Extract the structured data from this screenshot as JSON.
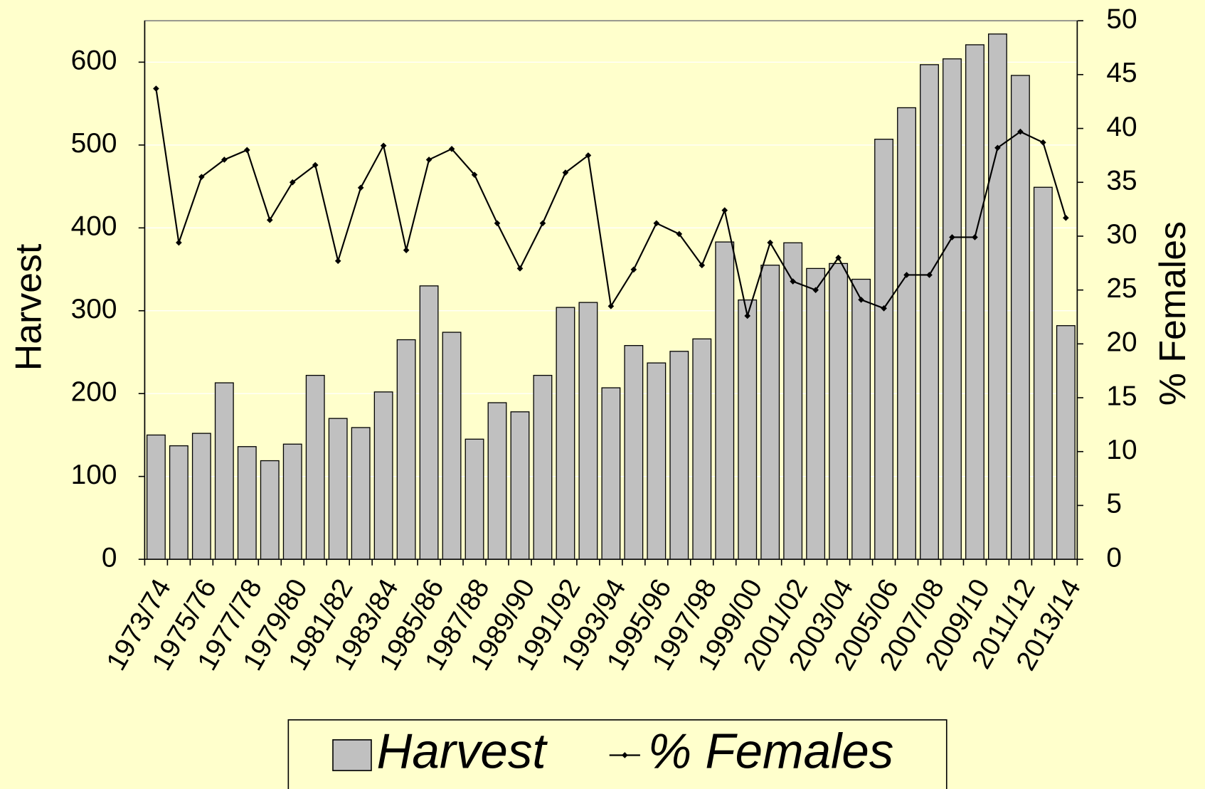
{
  "chart_data": {
    "type": "bar-line",
    "categories": [
      "1973/74",
      null,
      "1975/76",
      null,
      "1977/78",
      null,
      "1979/80",
      null,
      "1981/82",
      null,
      "1983/84",
      null,
      "1985/86",
      null,
      "1987/88",
      null,
      "1989/90",
      null,
      "1991/92",
      null,
      "1993/94",
      null,
      "1995/96",
      null,
      "1997/98",
      null,
      "1999/00",
      null,
      "2001/02",
      null,
      "2003/04",
      null,
      "2005/06",
      null,
      "2007/08",
      null,
      "2009/10",
      null,
      "2011/12",
      null,
      "2013/14"
    ],
    "series": [
      {
        "name": "Harvest",
        "type": "bar",
        "color": "#c0c0c0",
        "values": [
          150,
          137,
          152,
          213,
          136,
          119,
          139,
          222,
          170,
          159,
          202,
          265,
          330,
          274,
          145,
          189,
          178,
          222,
          304,
          310,
          207,
          258,
          237,
          251,
          266,
          383,
          313,
          355,
          382,
          351,
          357,
          338,
          507,
          545,
          597,
          604,
          621,
          634,
          584,
          449,
          282
        ]
      },
      {
        "name": "% Females",
        "type": "line",
        "axis": "y2",
        "color": "#000000",
        "values": [
          43.7,
          29.4,
          35.5,
          37.1,
          38.0,
          31.5,
          35.0,
          36.6,
          27.7,
          34.5,
          38.4,
          28.7,
          37.1,
          38.1,
          35.7,
          31.2,
          27.0,
          31.2,
          35.9,
          37.5,
          23.5,
          26.9,
          31.2,
          30.2,
          27.3,
          32.4,
          22.6,
          29.4,
          25.8,
          25.0,
          28.0,
          24.1,
          23.3,
          26.4,
          26.4,
          29.9,
          29.9,
          38.2,
          39.7,
          38.7,
          31.7
        ]
      }
    ],
    "ylabel": "Harvest",
    "y2label": "% Females",
    "ylim": [
      0,
      650
    ],
    "yticks": [
      0,
      100,
      200,
      300,
      400,
      500,
      600
    ],
    "y2lim": [
      0,
      50
    ],
    "y2ticks": [
      0,
      5,
      10,
      15,
      20,
      25,
      30,
      35,
      40,
      45,
      50
    ],
    "grid": true,
    "legend": "bottom"
  }
}
